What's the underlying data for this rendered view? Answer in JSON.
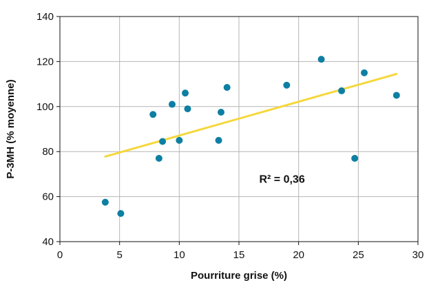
{
  "chart_data": {
    "type": "scatter",
    "title": "",
    "xlabel": "Pourriture grise (%)",
    "ylabel": "P-3MH (% moyenne)",
    "xlim": [
      0,
      30
    ],
    "ylim": [
      40,
      140
    ],
    "xticks": [
      0,
      5,
      10,
      15,
      20,
      25,
      30
    ],
    "yticks": [
      40,
      60,
      80,
      100,
      120,
      140
    ],
    "grid": true,
    "points": [
      {
        "x": 3.8,
        "y": 57.5
      },
      {
        "x": 5.1,
        "y": 52.5
      },
      {
        "x": 7.8,
        "y": 96.5
      },
      {
        "x": 8.3,
        "y": 77
      },
      {
        "x": 8.6,
        "y": 84.5
      },
      {
        "x": 9.4,
        "y": 101
      },
      {
        "x": 10.0,
        "y": 85
      },
      {
        "x": 10.5,
        "y": 106
      },
      {
        "x": 10.7,
        "y": 99
      },
      {
        "x": 13.3,
        "y": 85
      },
      {
        "x": 13.5,
        "y": 97.5
      },
      {
        "x": 14.0,
        "y": 108.5
      },
      {
        "x": 19.0,
        "y": 109.5
      },
      {
        "x": 21.9,
        "y": 121
      },
      {
        "x": 23.6,
        "y": 107
      },
      {
        "x": 24.7,
        "y": 77
      },
      {
        "x": 25.5,
        "y": 115
      },
      {
        "x": 28.2,
        "y": 105
      }
    ],
    "trendline": {
      "x": [
        3.8,
        28.2
      ],
      "y": [
        77.8,
        114.5
      ]
    },
    "annotation": {
      "text": "R² = 0,36",
      "x": 16.7,
      "y": 68
    },
    "colors": {
      "points": "#0e7fa3",
      "trendline": "#f5d73a",
      "grid": "#b5b5b5",
      "axis": "#111111"
    }
  }
}
